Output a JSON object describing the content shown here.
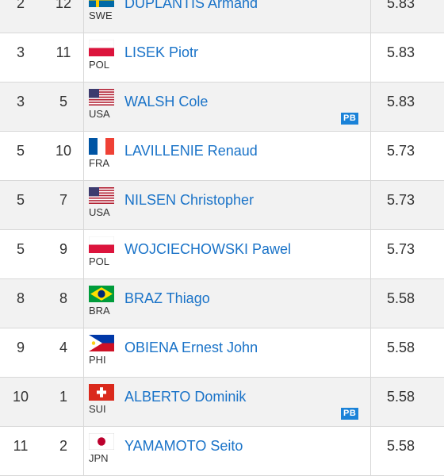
{
  "rows": [
    {
      "pos": "2",
      "order": "12",
      "flag": "flag-sweden",
      "country": "SWE",
      "name": "DUPLANTIS Armand",
      "mark": "5.83",
      "pb": ""
    },
    {
      "pos": "3",
      "order": "11",
      "flag": "flag-poland",
      "country": "POL",
      "name": "LISEK Piotr",
      "mark": "5.83",
      "pb": ""
    },
    {
      "pos": "3",
      "order": "5",
      "flag": "flag-usa",
      "country": "USA",
      "name": "WALSH Cole",
      "mark": "5.83",
      "pb": "PB"
    },
    {
      "pos": "5",
      "order": "10",
      "flag": "flag-france",
      "country": "FRA",
      "name": "LAVILLENIE Renaud",
      "mark": "5.73",
      "pb": ""
    },
    {
      "pos": "5",
      "order": "7",
      "flag": "flag-usa",
      "country": "USA",
      "name": "NILSEN Christopher",
      "mark": "5.73",
      "pb": ""
    },
    {
      "pos": "5",
      "order": "9",
      "flag": "flag-poland",
      "country": "POL",
      "name": "WOJCIECHOWSKI Pawel",
      "mark": "5.73",
      "pb": ""
    },
    {
      "pos": "8",
      "order": "8",
      "flag": "flag-brazil",
      "country": "BRA",
      "name": "BRAZ Thiago",
      "mark": "5.58",
      "pb": ""
    },
    {
      "pos": "9",
      "order": "4",
      "flag": "flag-philippines",
      "country": "PHI",
      "name": "OBIENA Ernest John",
      "mark": "5.58",
      "pb": ""
    },
    {
      "pos": "10",
      "order": "1",
      "flag": "flag-switzerland",
      "country": "SUI",
      "name": "ALBERTO Dominik",
      "mark": "5.58",
      "pb": "PB"
    },
    {
      "pos": "11",
      "order": "2",
      "flag": "flag-japan",
      "country": "JPN",
      "name": "YAMAMOTO Seito",
      "mark": "5.58",
      "pb": ""
    }
  ]
}
